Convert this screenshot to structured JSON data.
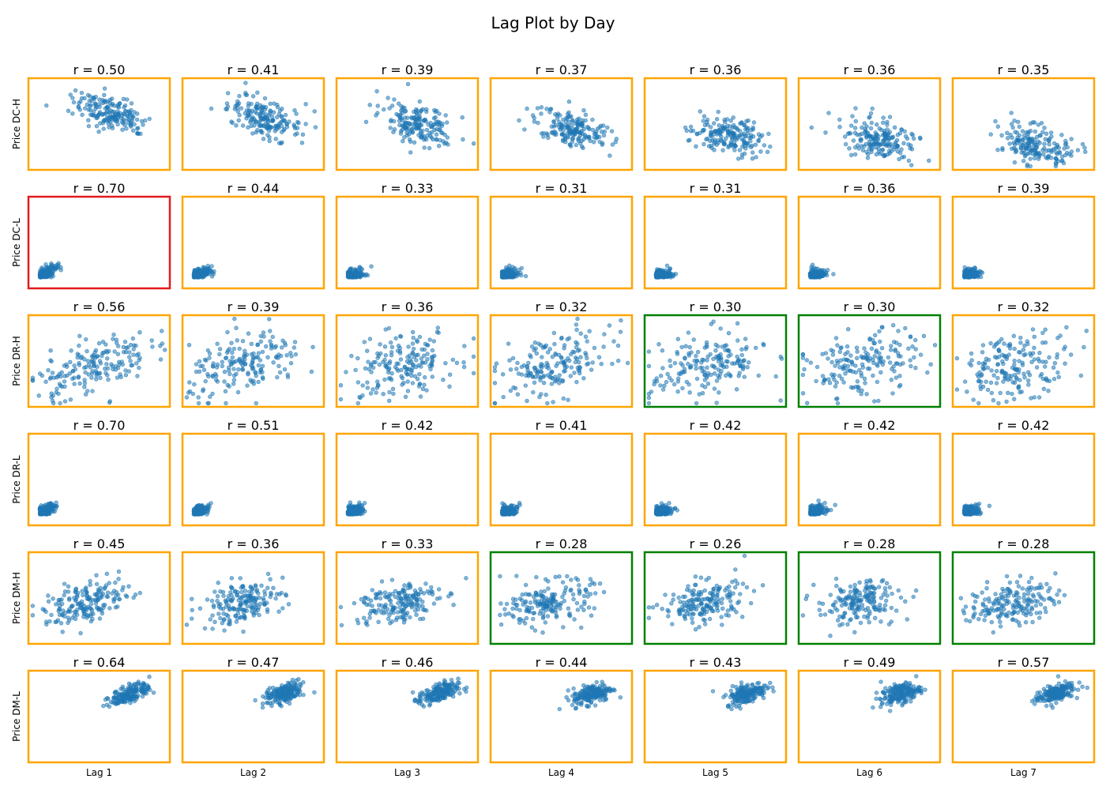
{
  "figure": {
    "title": "Lag Plot by Day"
  },
  "colors": {
    "point": "#1f77b4",
    "frame_default": "#ffa500",
    "frame_strong": "#e31a1c",
    "frame_weak": "#008000"
  },
  "chart_data": {
    "type": "scatter",
    "title": "Lag Plot by Day",
    "grid": false,
    "rows": [
      "Price DC-H",
      "Price DC-L",
      "Price DR-H",
      "Price DR-L",
      "Price DM-H",
      "Price DM-L"
    ],
    "cols": [
      "Lag 1",
      "Lag 2",
      "Lag 3",
      "Lag 4",
      "Lag 5",
      "Lag 6",
      "Lag 7"
    ],
    "r_labels": [
      [
        "r = 0.50",
        "r = 0.41",
        "r = 0.39",
        "r = 0.37",
        "r = 0.36",
        "r = 0.36",
        "r = 0.35"
      ],
      [
        "r = 0.70",
        "r = 0.44",
        "r = 0.33",
        "r = 0.31",
        "r = 0.31",
        "r = 0.36",
        "r = 0.39"
      ],
      [
        "r = 0.56",
        "r = 0.39",
        "r = 0.36",
        "r = 0.32",
        "r = 0.30",
        "r = 0.30",
        "r = 0.32"
      ],
      [
        "r = 0.70",
        "r = 0.51",
        "r = 0.42",
        "r = 0.41",
        "r = 0.42",
        "r = 0.42",
        "r = 0.42"
      ],
      [
        "r = 0.45",
        "r = 0.36",
        "r = 0.33",
        "r = 0.28",
        "r = 0.26",
        "r = 0.28",
        "r = 0.28"
      ],
      [
        "r = 0.64",
        "r = 0.47",
        "r = 0.46",
        "r = 0.44",
        "r = 0.43",
        "r = 0.49",
        "r = 0.57"
      ]
    ],
    "r": [
      [
        0.5,
        0.41,
        0.39,
        0.37,
        0.36,
        0.36,
        0.35
      ],
      [
        0.7,
        0.44,
        0.33,
        0.31,
        0.31,
        0.36,
        0.39
      ],
      [
        0.56,
        0.39,
        0.36,
        0.32,
        0.3,
        0.3,
        0.32
      ],
      [
        0.7,
        0.51,
        0.42,
        0.41,
        0.42,
        0.42,
        0.42
      ],
      [
        0.45,
        0.36,
        0.33,
        0.28,
        0.26,
        0.28,
        0.28
      ],
      [
        0.64,
        0.47,
        0.46,
        0.44,
        0.43,
        0.49,
        0.57
      ]
    ],
    "frame_status": [
      [
        "default",
        "default",
        "default",
        "default",
        "default",
        "default",
        "default"
      ],
      [
        "strong",
        "default",
        "default",
        "default",
        "default",
        "default",
        "default"
      ],
      [
        "default",
        "default",
        "default",
        "default",
        "weak",
        "weak",
        "default"
      ],
      [
        "default",
        "default",
        "default",
        "default",
        "default",
        "default",
        "default"
      ],
      [
        "default",
        "default",
        "default",
        "weak",
        "weak",
        "weak",
        "weak"
      ],
      [
        "default",
        "default",
        "default",
        "default",
        "default",
        "default",
        "default"
      ]
    ],
    "cluster_style": [
      "mid-right",
      "low-left",
      "broad-diagonal",
      "low-left",
      "mid-center",
      "tight-upper-right"
    ]
  }
}
